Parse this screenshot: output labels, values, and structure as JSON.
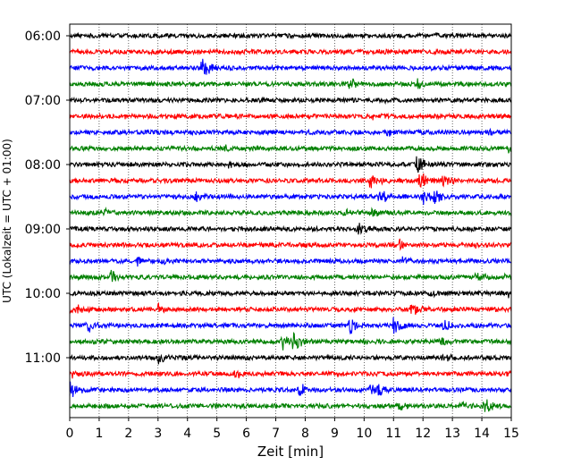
{
  "chart_data": {
    "type": "line",
    "subtype": "helicorder (stacked seismic traces)",
    "xlabel": "Zeit  [min]",
    "ylabel": "UTC (Lokalzeit = UTC + 01:00)",
    "xlim": [
      0,
      15
    ],
    "x_ticks": [
      0,
      1,
      2,
      3,
      4,
      5,
      6,
      7,
      8,
      9,
      10,
      11,
      12,
      13,
      14,
      15
    ],
    "y_tick_labels": [
      "06:00",
      "07:00",
      "08:00",
      "09:00",
      "10:00",
      "11:00"
    ],
    "grid": "vertical dotted lines at each minute",
    "trace_interval_minutes": 15,
    "trace_colors": [
      "#000000",
      "#ff0000",
      "#0000ff",
      "#008000"
    ],
    "traces": [
      {
        "row": 0,
        "start": "06:00",
        "events": [
          {
            "t": 12.5,
            "amp": 0.25
          }
        ]
      },
      {
        "row": 1,
        "start": "06:15",
        "events": [
          {
            "t": 10.5,
            "amp": 0.2
          }
        ]
      },
      {
        "row": 2,
        "start": "06:30",
        "events": [
          {
            "t": 4.5,
            "amp": 1.2
          },
          {
            "t": 12.3,
            "amp": 0.25
          }
        ]
      },
      {
        "row": 3,
        "start": "06:45",
        "events": [
          {
            "t": 9.5,
            "amp": 0.7
          },
          {
            "t": 11.8,
            "amp": 0.6
          },
          {
            "t": 1.5,
            "amp": 0.25
          }
        ]
      },
      {
        "row": 4,
        "start": "07:00",
        "events": [
          {
            "t": 10.5,
            "amp": 0.3
          }
        ]
      },
      {
        "row": 5,
        "start": "07:15",
        "events": [
          {
            "t": 1.8,
            "amp": 0.3
          },
          {
            "t": 10.3,
            "amp": 0.3
          }
        ]
      },
      {
        "row": 6,
        "start": "07:30",
        "events": [
          {
            "t": 10.8,
            "amp": 0.3
          },
          {
            "t": 14.2,
            "amp": 0.3
          }
        ]
      },
      {
        "row": 7,
        "start": "07:45",
        "events": [
          {
            "t": 14.9,
            "amp": 0.4
          },
          {
            "t": 5.3,
            "amp": 0.2
          }
        ]
      },
      {
        "row": 8,
        "start": "08:00",
        "events": [
          {
            "t": 11.8,
            "amp": 1.0
          },
          {
            "t": 5.4,
            "amp": 0.25
          }
        ]
      },
      {
        "row": 9,
        "start": "08:15",
        "events": [
          {
            "t": 10.2,
            "amp": 0.8
          },
          {
            "t": 11.9,
            "amp": 1.1
          },
          {
            "t": 12.7,
            "amp": 1.0
          }
        ]
      },
      {
        "row": 10,
        "start": "08:30",
        "events": [
          {
            "t": 4.3,
            "amp": 0.7
          },
          {
            "t": 10.5,
            "amp": 0.9
          },
          {
            "t": 12.0,
            "amp": 0.8
          },
          {
            "t": 12.4,
            "amp": 0.8
          }
        ]
      },
      {
        "row": 11,
        "start": "08:45",
        "events": [
          {
            "t": 9.3,
            "amp": 0.6
          },
          {
            "t": 10.3,
            "amp": 0.6
          },
          {
            "t": 1.2,
            "amp": 0.3
          }
        ]
      },
      {
        "row": 12,
        "start": "09:00",
        "events": [
          {
            "t": 9.8,
            "amp": 0.9
          }
        ]
      },
      {
        "row": 13,
        "start": "09:15",
        "events": [
          {
            "t": 11.2,
            "amp": 0.6
          },
          {
            "t": 13.8,
            "amp": 0.3
          }
        ]
      },
      {
        "row": 14,
        "start": "09:30",
        "events": [
          {
            "t": 2.3,
            "amp": 0.6
          },
          {
            "t": 3.1,
            "amp": 0.5
          },
          {
            "t": 11.3,
            "amp": 0.4
          }
        ]
      },
      {
        "row": 15,
        "start": "09:45",
        "events": [
          {
            "t": 1.4,
            "amp": 0.9
          },
          {
            "t": 13.8,
            "amp": 0.6
          },
          {
            "t": 14.8,
            "amp": 0.4
          }
        ]
      },
      {
        "row": 16,
        "start": "10:00",
        "events": [
          {
            "t": 14.9,
            "amp": 0.5
          },
          {
            "t": 12.2,
            "amp": 0.3
          }
        ]
      },
      {
        "row": 17,
        "start": "10:15",
        "events": [
          {
            "t": 0.05,
            "amp": 1.0
          },
          {
            "t": 3.0,
            "amp": 0.8
          },
          {
            "t": 11.6,
            "amp": 0.7
          }
        ]
      },
      {
        "row": 18,
        "start": "10:30",
        "events": [
          {
            "t": 0.6,
            "amp": 0.8
          },
          {
            "t": 9.5,
            "amp": 1.0
          },
          {
            "t": 11.0,
            "amp": 1.0
          },
          {
            "t": 12.7,
            "amp": 0.6
          }
        ]
      },
      {
        "row": 19,
        "start": "10:45",
        "events": [
          {
            "t": 7.2,
            "amp": 0.9
          },
          {
            "t": 7.6,
            "amp": 1.1
          },
          {
            "t": 10.0,
            "amp": 0.5
          },
          {
            "t": 12.5,
            "amp": 0.5
          }
        ]
      },
      {
        "row": 20,
        "start": "11:00",
        "events": [
          {
            "t": 3.0,
            "amp": 0.6
          },
          {
            "t": 12.7,
            "amp": 0.5
          }
        ]
      },
      {
        "row": 21,
        "start": "11:15",
        "events": [
          {
            "t": 0.1,
            "amp": 0.6
          },
          {
            "t": 5.6,
            "amp": 0.6
          },
          {
            "t": 14.9,
            "amp": 0.3
          }
        ]
      },
      {
        "row": 22,
        "start": "11:30",
        "events": [
          {
            "t": 0.05,
            "amp": 1.1
          },
          {
            "t": 7.8,
            "amp": 0.7
          },
          {
            "t": 10.2,
            "amp": 0.7
          },
          {
            "t": 10.5,
            "amp": 0.7
          }
        ]
      },
      {
        "row": 23,
        "start": "11:45",
        "events": [
          {
            "t": 14.1,
            "amp": 0.9
          },
          {
            "t": 13.3,
            "amp": 0.5
          },
          {
            "t": 11.2,
            "amp": 0.5
          }
        ]
      }
    ]
  }
}
